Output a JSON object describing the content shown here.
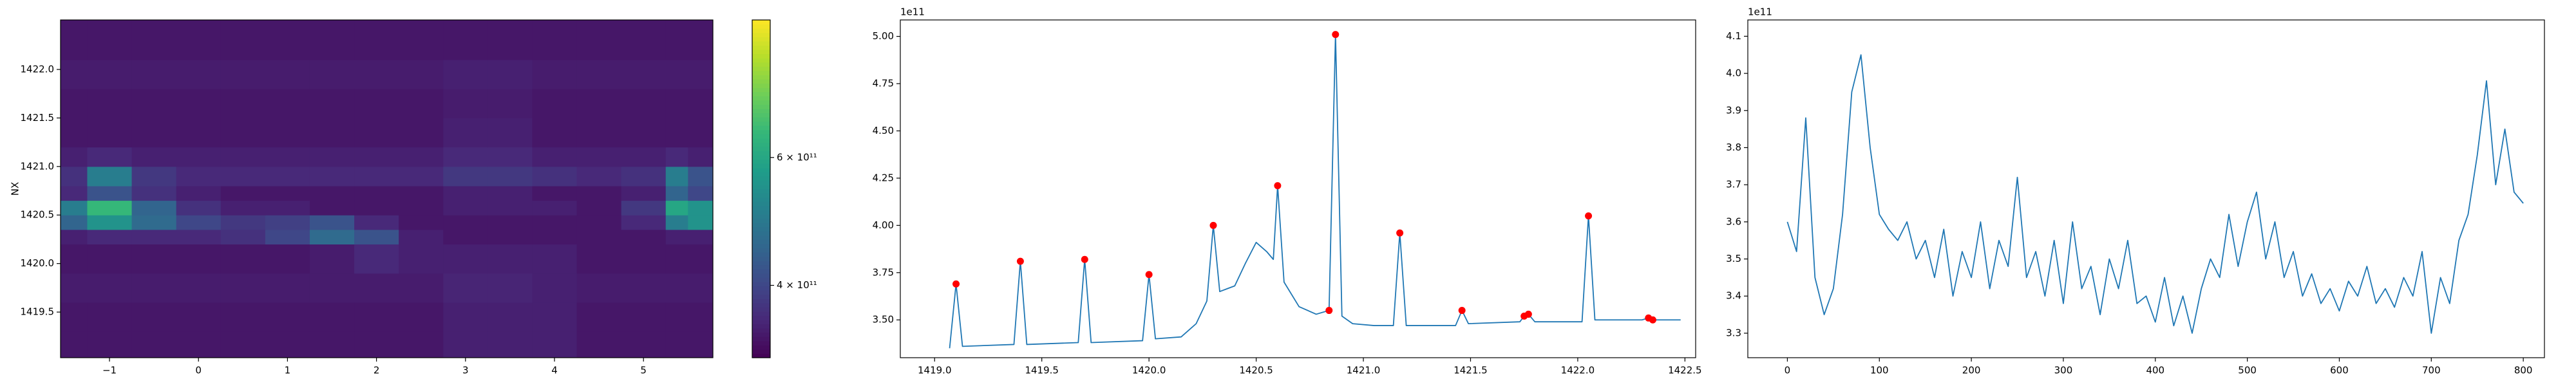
{
  "chart_data": [
    {
      "type": "heatmap",
      "y_label": "NX",
      "x_edges": [
        -1.55,
        -1.25,
        -0.75,
        -0.25,
        0.25,
        0.75,
        1.25,
        1.75,
        2.25,
        2.75,
        3.25,
        3.75,
        4.25,
        4.75,
        5.25,
        5.5,
        5.78
      ],
      "y_edges": [
        1419.03,
        1419.3,
        1419.6,
        1419.9,
        1420.2,
        1420.35,
        1420.5,
        1420.65,
        1420.8,
        1421.0,
        1421.2,
        1421.5,
        1421.8,
        1422.1,
        1422.51
      ],
      "z": [
        [
          340000000000.0,
          340000000000.0,
          340000000000.0,
          340000000000.0,
          340000000000.0,
          340000000000.0,
          340000000000.0,
          340000000000.0,
          340000000000.0,
          350000000000.0,
          350000000000.0,
          350000000000.0,
          340000000000.0,
          340000000000.0,
          340000000000.0,
          340000000000.0
        ],
        [
          340000000000.0,
          340000000000.0,
          340000000000.0,
          340000000000.0,
          340000000000.0,
          340000000000.0,
          340000000000.0,
          340000000000.0,
          340000000000.0,
          350000000000.0,
          350000000000.0,
          350000000000.0,
          340000000000.0,
          340000000000.0,
          340000000000.0,
          340000000000.0
        ],
        [
          345000000000.0,
          345000000000.0,
          345000000000.0,
          345000000000.0,
          345000000000.0,
          345000000000.0,
          345000000000.0,
          345000000000.0,
          345000000000.0,
          355000000000.0,
          355000000000.0,
          350000000000.0,
          345000000000.0,
          345000000000.0,
          345000000000.0,
          345000000000.0
        ],
        [
          340000000000.0,
          340000000000.0,
          340000000000.0,
          340000000000.0,
          340000000000.0,
          340000000000.0,
          345000000000.0,
          360000000000.0,
          350000000000.0,
          350000000000.0,
          350000000000.0,
          350000000000.0,
          340000000000.0,
          340000000000.0,
          340000000000.0,
          340000000000.0
        ],
        [
          350000000000.0,
          360000000000.0,
          360000000000.0,
          360000000000.0,
          370000000000.0,
          400000000000.0,
          460000000000.0,
          420000000000.0,
          350000000000.0,
          340000000000.0,
          340000000000.0,
          340000000000.0,
          340000000000.0,
          340000000000.0,
          350000000000.0,
          350000000000.0
        ],
        [
          450000000000.0,
          550000000000.0,
          460000000000.0,
          400000000000.0,
          380000000000.0,
          390000000000.0,
          420000000000.0,
          360000000000.0,
          340000000000.0,
          340000000000.0,
          340000000000.0,
          340000000000.0,
          340000000000.0,
          360000000000.0,
          500000000000.0,
          550000000000.0
        ],
        [
          500000000000.0,
          650000000000.0,
          450000000000.0,
          370000000000.0,
          350000000000.0,
          350000000000.0,
          340000000000.0,
          340000000000.0,
          340000000000.0,
          350000000000.0,
          350000000000.0,
          350000000000.0,
          340000000000.0,
          380000000000.0,
          600000000000.0,
          550000000000.0
        ],
        [
          360000000000.0,
          420000000000.0,
          370000000000.0,
          350000000000.0,
          340000000000.0,
          340000000000.0,
          340000000000.0,
          340000000000.0,
          340000000000.0,
          350000000000.0,
          350000000000.0,
          340000000000.0,
          340000000000.0,
          350000000000.0,
          450000000000.0,
          400000000000.0
        ],
        [
          370000000000.0,
          500000000000.0,
          380000000000.0,
          360000000000.0,
          360000000000.0,
          360000000000.0,
          360000000000.0,
          360000000000.0,
          360000000000.0,
          380000000000.0,
          380000000000.0,
          370000000000.0,
          360000000000.0,
          370000000000.0,
          500000000000.0,
          420000000000.0
        ],
        [
          350000000000.0,
          360000000000.0,
          350000000000.0,
          350000000000.0,
          350000000000.0,
          350000000000.0,
          350000000000.0,
          350000000000.0,
          350000000000.0,
          360000000000.0,
          360000000000.0,
          350000000000.0,
          350000000000.0,
          350000000000.0,
          360000000000.0,
          350000000000.0
        ],
        [
          340000000000.0,
          340000000000.0,
          340000000000.0,
          340000000000.0,
          340000000000.0,
          340000000000.0,
          340000000000.0,
          340000000000.0,
          340000000000.0,
          350000000000.0,
          350000000000.0,
          340000000000.0,
          340000000000.0,
          340000000000.0,
          340000000000.0,
          340000000000.0
        ],
        [
          340000000000.0,
          340000000000.0,
          340000000000.0,
          340000000000.0,
          340000000000.0,
          340000000000.0,
          340000000000.0,
          340000000000.0,
          340000000000.0,
          345000000000.0,
          345000000000.0,
          340000000000.0,
          340000000000.0,
          340000000000.0,
          340000000000.0,
          340000000000.0
        ],
        [
          345000000000.0,
          345000000000.0,
          345000000000.0,
          345000000000.0,
          345000000000.0,
          345000000000.0,
          345000000000.0,
          345000000000.0,
          345000000000.0,
          350000000000.0,
          350000000000.0,
          345000000000.0,
          345000000000.0,
          345000000000.0,
          345000000000.0,
          345000000000.0
        ],
        [
          340000000000.0,
          340000000000.0,
          340000000000.0,
          340000000000.0,
          340000000000.0,
          340000000000.0,
          340000000000.0,
          340000000000.0,
          340000000000.0,
          340000000000.0,
          340000000000.0,
          340000000000.0,
          340000000000.0,
          340000000000.0,
          340000000000.0,
          340000000000.0
        ]
      ],
      "colormap": "viridis",
      "color_scale": "log",
      "zlim": [
        318000000000.0,
        928000000000.0
      ],
      "zticks": [
        {
          "value": 400000000000.0,
          "label": "4 × 10¹¹"
        },
        {
          "value": 600000000000.0,
          "label": "6 × 10¹¹"
        }
      ],
      "xlim": [
        -1.55,
        5.78
      ],
      "xticks": [
        {
          "value": -1,
          "label": "−1"
        },
        0,
        1,
        2,
        3,
        4,
        5
      ],
      "ylim": [
        1419.03,
        1422.51
      ],
      "yticks": [
        {
          "value": 1419.5,
          "label": "1419.5"
        },
        {
          "value": 1420,
          "label": "1420.0"
        },
        {
          "value": 1420.5,
          "label": "1420.5"
        },
        {
          "value": 1421,
          "label": "1421.0"
        },
        {
          "value": 1421.5,
          "label": "1421.5"
        },
        {
          "value": 1422,
          "label": "1422.0"
        }
      ]
    },
    {
      "type": "line",
      "y_offset_label": "1e11",
      "series": [
        {
          "color": "#1f77b4",
          "x": [
            1419.07,
            1419.1,
            1419.13,
            1419.37,
            1419.4,
            1419.43,
            1419.67,
            1419.7,
            1419.73,
            1419.97,
            1420,
            1420.03,
            1420.15,
            1420.22,
            1420.27,
            1420.3,
            1420.33,
            1420.4,
            1420.45,
            1420.5,
            1420.55,
            1420.58,
            1420.6,
            1420.63,
            1420.7,
            1420.78,
            1420.84,
            1420.87,
            1420.9,
            1420.95,
            1421.05,
            1421.14,
            1421.17,
            1421.2,
            1421.43,
            1421.46,
            1421.49,
            1421.73,
            1421.75,
            1421.77,
            1421.8,
            1422.02,
            1422.05,
            1422.08,
            1422.3,
            1422.33,
            1422.35,
            1422.48
          ],
          "values": [
            3.35,
            3.69,
            3.36,
            3.37,
            3.81,
            3.37,
            3.38,
            3.82,
            3.38,
            3.39,
            3.74,
            3.4,
            3.41,
            3.48,
            3.6,
            4.0,
            3.65,
            3.68,
            3.8,
            3.91,
            3.86,
            3.82,
            4.21,
            3.7,
            3.57,
            3.53,
            3.55,
            5.01,
            3.52,
            3.48,
            3.47,
            3.47,
            3.96,
            3.47,
            3.47,
            3.55,
            3.48,
            3.49,
            3.52,
            3.53,
            3.49,
            3.49,
            4.05,
            3.5,
            3.5,
            3.51,
            3.5,
            3.5
          ]
        },
        {
          "color": "#ff0000",
          "marker": "o",
          "linestyle": "none",
          "x": [
            1419.1,
            1419.4,
            1419.7,
            1420.0,
            1420.3,
            1420.6,
            1420.84,
            1420.87,
            1421.17,
            1421.46,
            1421.75,
            1421.77,
            1422.05,
            1422.33,
            1422.35
          ],
          "values": [
            3.69,
            3.81,
            3.82,
            3.74,
            4.0,
            4.21,
            3.55,
            5.01,
            3.96,
            3.55,
            3.52,
            3.53,
            4.05,
            3.51,
            3.5
          ]
        }
      ],
      "xlim": [
        1418.84,
        1422.55
      ],
      "xticks": [
        {
          "value": 1419,
          "label": "1419.0"
        },
        {
          "value": 1419.5,
          "label": "1419.5"
        },
        {
          "value": 1420,
          "label": "1420.0"
        },
        {
          "value": 1420.5,
          "label": "1420.5"
        },
        {
          "value": 1421,
          "label": "1421.0"
        },
        {
          "value": 1421.5,
          "label": "1421.5"
        },
        {
          "value": 1422,
          "label": "1422.0"
        },
        {
          "value": 1422.5,
          "label": "1422.5"
        }
      ],
      "ylim": [
        3.3,
        5.087
      ],
      "yticks": [
        {
          "value": 3.5,
          "label": "3.50"
        },
        3.75,
        {
          "value": 4,
          "label": "4.00"
        },
        4.25,
        {
          "value": 4.5,
          "label": "4.50"
        },
        4.75,
        {
          "value": 5,
          "label": "5.00"
        }
      ]
    },
    {
      "type": "line",
      "y_offset_label": "1e11",
      "series": [
        {
          "color": "#1f77b4",
          "x": [
            0,
            10,
            20,
            30,
            40,
            50,
            60,
            70,
            80,
            90,
            100,
            110,
            120,
            130,
            140,
            150,
            160,
            170,
            180,
            190,
            200,
            210,
            220,
            230,
            240,
            250,
            260,
            270,
            280,
            290,
            300,
            310,
            320,
            330,
            340,
            350,
            360,
            370,
            380,
            390,
            400,
            410,
            420,
            430,
            440,
            450,
            460,
            470,
            480,
            490,
            500,
            510,
            520,
            530,
            540,
            550,
            560,
            570,
            580,
            590,
            600,
            610,
            620,
            630,
            640,
            650,
            660,
            670,
            680,
            690,
            700,
            710,
            720,
            730,
            740,
            750,
            760,
            770,
            780,
            790,
            800
          ],
          "values": [
            3.6,
            3.52,
            3.88,
            3.45,
            3.35,
            3.42,
            3.62,
            3.95,
            4.05,
            3.8,
            3.62,
            3.58,
            3.55,
            3.6,
            3.5,
            3.55,
            3.45,
            3.58,
            3.4,
            3.52,
            3.45,
            3.6,
            3.42,
            3.55,
            3.48,
            3.72,
            3.45,
            3.52,
            3.4,
            3.55,
            3.38,
            3.6,
            3.42,
            3.48,
            3.35,
            3.5,
            3.42,
            3.55,
            3.38,
            3.4,
            3.33,
            3.45,
            3.32,
            3.4,
            3.3,
            3.42,
            3.5,
            3.45,
            3.62,
            3.48,
            3.6,
            3.68,
            3.5,
            3.6,
            3.45,
            3.52,
            3.4,
            3.46,
            3.38,
            3.42,
            3.36,
            3.44,
            3.4,
            3.48,
            3.38,
            3.42,
            3.37,
            3.45,
            3.4,
            3.52,
            3.3,
            3.45,
            3.38,
            3.55,
            3.62,
            3.78,
            3.98,
            3.7,
            3.85,
            3.68,
            3.65
          ]
        }
      ],
      "xlim": [
        -43,
        823
      ],
      "xticks": [
        0,
        100,
        200,
        300,
        400,
        500,
        600,
        700,
        800
      ],
      "ylim": [
        3.234,
        4.144
      ],
      "yticks": [
        3.3,
        3.4,
        3.5,
        3.6,
        3.7,
        3.8,
        3.9,
        {
          "value": 4,
          "label": "4.0"
        },
        4.1
      ]
    }
  ]
}
